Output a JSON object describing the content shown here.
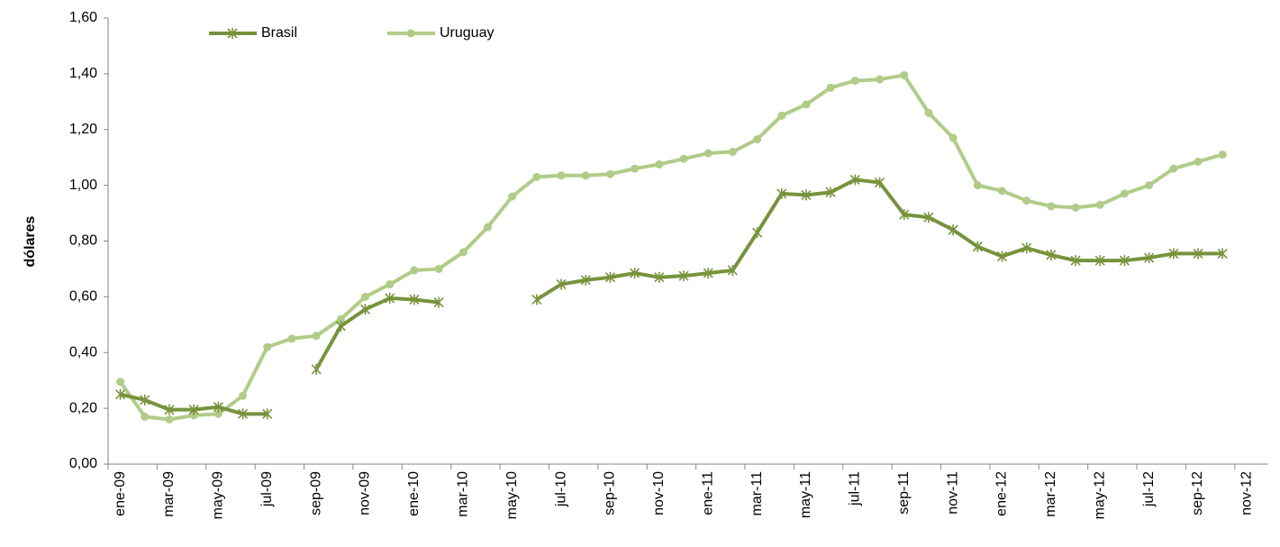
{
  "chart_data": {
    "type": "line",
    "y_label": "dólares",
    "categories": [
      "ene-09",
      null,
      "mar-09",
      null,
      "may-09",
      null,
      "jul-09",
      null,
      "sep-09",
      null,
      "nov-09",
      null,
      "ene-10",
      null,
      "mar-10",
      null,
      "may-10",
      null,
      "jul-10",
      null,
      "sep-10",
      null,
      "nov-10",
      null,
      "ene-11",
      null,
      "mar-11",
      null,
      "may-11",
      null,
      "jul-11",
      null,
      "sep-11",
      null,
      "nov-11",
      null,
      "ene-12",
      null,
      "mar-12",
      null,
      "may-12",
      null,
      "jul-12",
      null,
      "sep-12",
      null,
      "nov-12"
    ],
    "series": [
      {
        "name": "Brasil",
        "color": "#77933c",
        "marker": "star",
        "values": [
          0.25,
          0.23,
          0.195,
          0.195,
          0.205,
          0.18,
          0.18,
          null,
          0.34,
          0.495,
          0.555,
          0.595,
          0.59,
          0.58,
          null,
          null,
          null,
          0.59,
          0.645,
          0.66,
          0.67,
          0.685,
          0.67,
          0.675,
          0.685,
          0.695,
          0.83,
          0.97,
          0.965,
          0.975,
          1.02,
          1.01,
          0.895,
          0.885,
          0.84,
          0.78,
          0.745,
          0.775,
          0.75,
          0.73,
          0.73,
          0.73,
          0.74,
          0.755,
          0.755,
          0.755,
          null
        ]
      },
      {
        "name": "Uruguay",
        "color": "#b0cc88",
        "marker": "circle",
        "values": [
          0.295,
          0.17,
          0.16,
          0.175,
          0.18,
          0.245,
          0.42,
          0.45,
          0.46,
          0.52,
          0.6,
          0.645,
          0.695,
          0.7,
          0.76,
          0.85,
          0.96,
          1.03,
          1.035,
          1.035,
          1.04,
          1.06,
          1.075,
          1.095,
          1.115,
          1.12,
          1.165,
          1.25,
          1.29,
          1.35,
          1.375,
          1.38,
          1.395,
          1.26,
          1.17,
          1.0,
          0.98,
          0.945,
          0.925,
          0.92,
          0.93,
          0.97,
          1.0,
          1.06,
          1.085,
          1.11,
          null
        ]
      }
    ],
    "ylim": [
      0,
      1.6
    ],
    "yticks": [
      {
        "value": 0,
        "label": "0,00"
      },
      {
        "value": 0.2,
        "label": "0,20"
      },
      {
        "value": 0.4,
        "label": "0,40"
      },
      {
        "value": 0.6,
        "label": "0,60"
      },
      {
        "value": 0.8,
        "label": "0,80"
      },
      {
        "value": 1.0,
        "label": "1,00"
      },
      {
        "value": 1.2,
        "label": "1,20"
      },
      {
        "value": 1.4,
        "label": "1,40"
      },
      {
        "value": 1.6,
        "label": "1,60"
      }
    ],
    "grid": false,
    "legend": "top"
  }
}
